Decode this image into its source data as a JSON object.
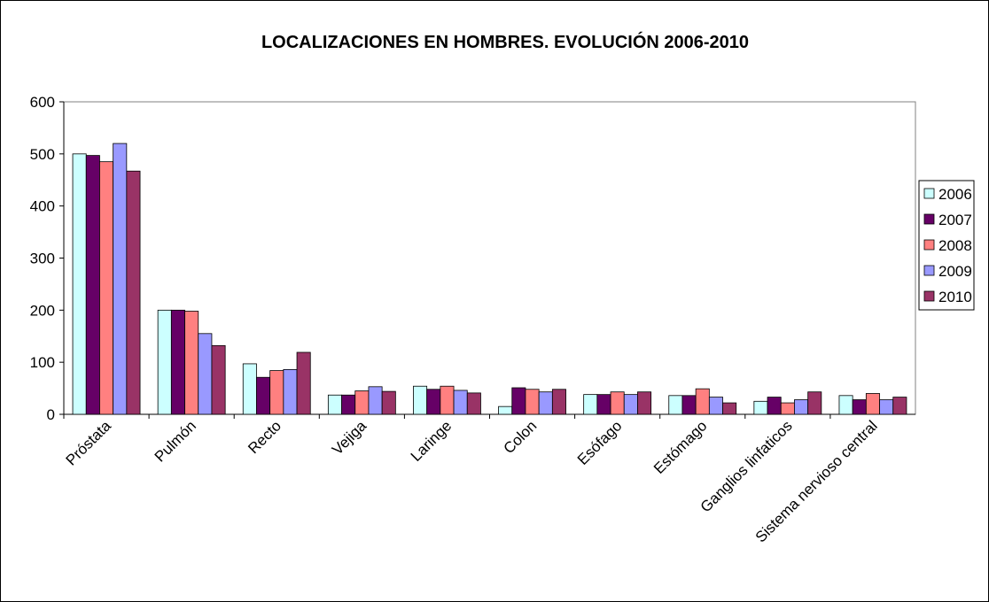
{
  "chart_data": {
    "type": "bar",
    "title": "LOCALIZACIONES EN HOMBRES. EVOLUCIÓN 2006-2010",
    "categories": [
      "Próstata",
      "Pulmón",
      "Recto",
      "Vejiga",
      "Laringe",
      "Colon",
      "Esófago",
      "Estómago",
      "Ganglios linfaticos",
      "Sistema nervioso central"
    ],
    "series": [
      {
        "name": "2006",
        "color": "#ccffff",
        "values": [
          500,
          200,
          97,
          37,
          54,
          15,
          38,
          36,
          25,
          36
        ]
      },
      {
        "name": "2007",
        "color": "#660066",
        "values": [
          497,
          200,
          71,
          37,
          48,
          51,
          38,
          36,
          33,
          28
        ]
      },
      {
        "name": "2008",
        "color": "#ff8080",
        "values": [
          485,
          198,
          84,
          45,
          54,
          48,
          43,
          49,
          22,
          40
        ]
      },
      {
        "name": "2009",
        "color": "#9999ff",
        "values": [
          520,
          155,
          86,
          53,
          46,
          43,
          38,
          33,
          28,
          28
        ]
      },
      {
        "name": "2010",
        "color": "#993366",
        "values": [
          467,
          132,
          119,
          44,
          41,
          48,
          43,
          22,
          43,
          33
        ]
      }
    ],
    "ylim": [
      0,
      600
    ],
    "yticks": [
      0,
      100,
      200,
      300,
      400,
      500,
      600
    ],
    "grid": false,
    "legend": "right"
  }
}
